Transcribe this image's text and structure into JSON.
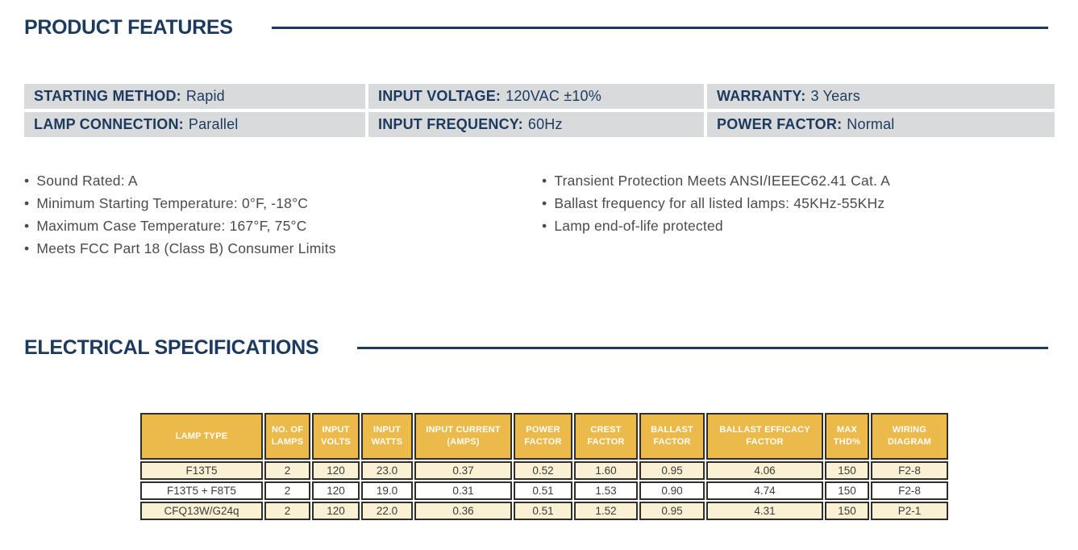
{
  "ui": {
    "bullet": "•"
  },
  "theme": {
    "navy": "#1c3a5e",
    "gold": "#ecba4b",
    "cream": "#faf0d4",
    "cell_gray": "#d9dadc",
    "border_dark": "#2f2e2a",
    "body_gray": "#4b4b4b",
    "data_gray": "#3c3c3c"
  },
  "product_features": {
    "title": "PRODUCT FEATURES",
    "spec_table": {
      "rows": [
        [
          {
            "label": "STARTING METHOD:",
            "value": "Rapid"
          },
          {
            "label": "INPUT VOLTAGE:",
            "value": "120VAC ±10%"
          },
          {
            "label": "WARRANTY:",
            "value": "3 Years"
          }
        ],
        [
          {
            "label": "LAMP CONNECTION:",
            "value": "Parallel"
          },
          {
            "label": "INPUT FREQUENCY:",
            "value": "60Hz"
          },
          {
            "label": "POWER FACTOR:",
            "value": "Normal"
          }
        ]
      ]
    },
    "bullets_left": [
      "Sound Rated: A",
      "Minimum Starting Temperature: 0°F, -18°C",
      "Maximum Case Temperature: 167°F, 75°C",
      "Meets FCC Part 18 (Class B) Consumer Limits"
    ],
    "bullets_right": [
      "Transient Protection Meets ANSI/IEEEC62.41 Cat. A",
      "Ballast frequency for all listed lamps: 45KHz-55KHz",
      "Lamp end-of-life protected"
    ]
  },
  "electrical_specifications": {
    "title": "ELECTRICAL SPECIFICATIONS",
    "table": {
      "headers": [
        "LAMP TYPE",
        "NO. OF LAMPS",
        "INPUT VOLTS",
        "INPUT WATTS",
        "INPUT CURRENT (AMPS)",
        "POWER FACTOR",
        "CREST FACTOR",
        "BALLAST FACTOR",
        "BALLAST EFFICACY FACTOR",
        "MAX THD%",
        "WIRING DIAGRAM"
      ],
      "rows": [
        [
          "F13T5",
          "2",
          "120",
          "23.0",
          "0.37",
          "0.52",
          "1.60",
          "0.95",
          "4.06",
          "150",
          "F2-8"
        ],
        [
          "F13T5 + F8T5",
          "2",
          "120",
          "19.0",
          "0.31",
          "0.51",
          "1.53",
          "0.90",
          "4.74",
          "150",
          "F2-8"
        ],
        [
          "CFQ13W/G24q",
          "2",
          "120",
          "22.0",
          "0.36",
          "0.51",
          "1.52",
          "0.95",
          "4.31",
          "150",
          "P2-1"
        ]
      ]
    }
  }
}
